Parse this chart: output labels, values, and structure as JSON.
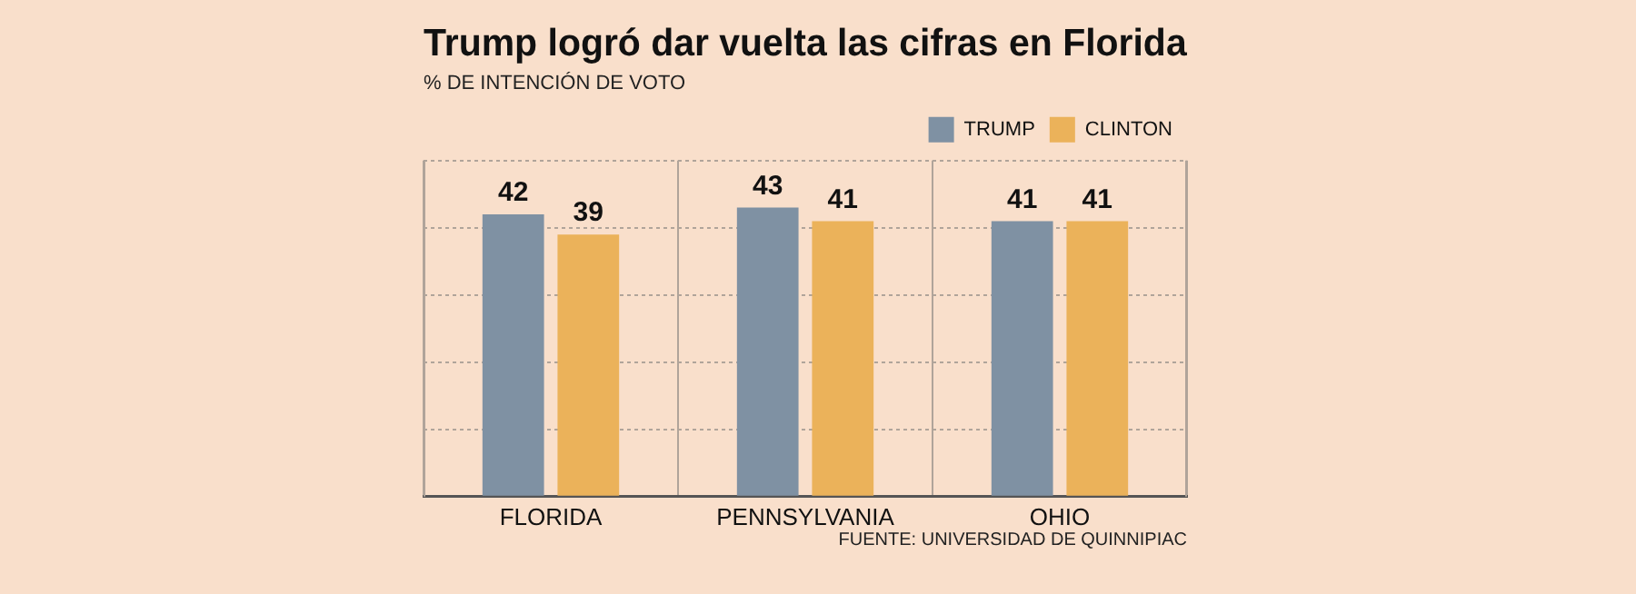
{
  "chart_data": {
    "type": "bar",
    "title": "Trump logró dar vuelta las cifras en Florida",
    "subtitle": "% DE INTENCIÓN DE VOTO",
    "categories": [
      "FLORIDA",
      "PENNSYLVANIA",
      "OHIO"
    ],
    "series": [
      {
        "name": "TRUMP",
        "color": "#7f91a3",
        "values": [
          42,
          43,
          41
        ]
      },
      {
        "name": "CLINTON",
        "color": "#ebb25a",
        "values": [
          39,
          41,
          41
        ]
      }
    ],
    "ylim": [
      0,
      50
    ],
    "yticks": [
      0,
      10,
      20,
      30,
      40,
      50
    ],
    "tick_labels": "x",
    "grid": true,
    "legend": "top right",
    "data_labels": true,
    "annotations": [
      "FUENTE: UNIVERSIDAD DE QUINNIPIAC"
    ]
  }
}
